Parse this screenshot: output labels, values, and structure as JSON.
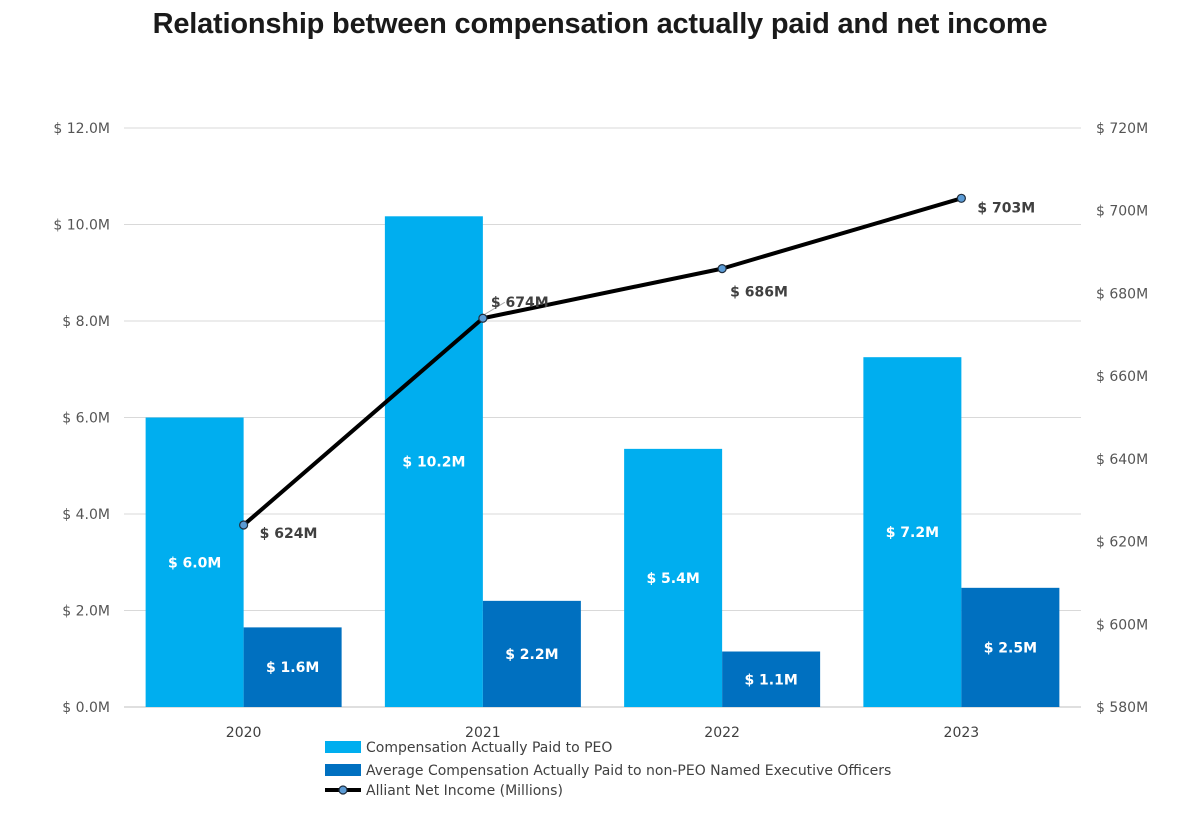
{
  "chart_data": {
    "type": "bar",
    "title": "Relationship between compensation actually paid and net income",
    "categories": [
      "2020",
      "2021",
      "2022",
      "2023"
    ],
    "series": [
      {
        "name": "Compensation Actually Paid to PEO",
        "type": "bar",
        "axis": "left",
        "color": "#00AEEF",
        "values": [
          6.0,
          10.17,
          5.35,
          7.25
        ],
        "labels": [
          "$ 6.0M",
          "$ 10.2M",
          "$ 5.4M",
          "$ 7.2M"
        ]
      },
      {
        "name": "Average Compensation Actually Paid to non-PEO Named Executive Officers",
        "type": "bar",
        "axis": "left",
        "color": "#0070C0",
        "values": [
          1.65,
          2.2,
          1.15,
          2.47
        ],
        "labels": [
          "$ 1.6M",
          "$ 2.2M",
          "$ 1.1M",
          "$ 2.5M"
        ]
      },
      {
        "name": "Alliant Net Income (Millions)",
        "type": "line",
        "axis": "right",
        "color": "#000000",
        "marker_color": "#5B9BD5",
        "values": [
          624,
          674,
          686,
          703
        ],
        "labels": [
          "$ 624M",
          "$ 674M",
          "$ 686M",
          "$ 703M"
        ]
      }
    ],
    "left_axis": {
      "min": 0,
      "max": 12,
      "ticks": [
        0,
        2,
        4,
        6,
        8,
        10,
        12
      ],
      "tick_labels": [
        "$ 0.0M",
        "$ 2.0M",
        "$ 4.0M",
        "$ 6.0M",
        "$ 8.0M",
        "$ 10.0M",
        "$ 12.0M"
      ]
    },
    "right_axis": {
      "min": 580,
      "max": 720,
      "ticks": [
        580,
        600,
        620,
        640,
        660,
        680,
        700,
        720
      ],
      "tick_labels": [
        "$ 580M",
        "$ 600M",
        "$ 620M",
        "$ 640M",
        "$ 660M",
        "$ 680M",
        "$ 700M",
        "$ 720M"
      ]
    },
    "xlabel": "",
    "ylabel": "",
    "grid": true,
    "legend_position": "bottom"
  }
}
